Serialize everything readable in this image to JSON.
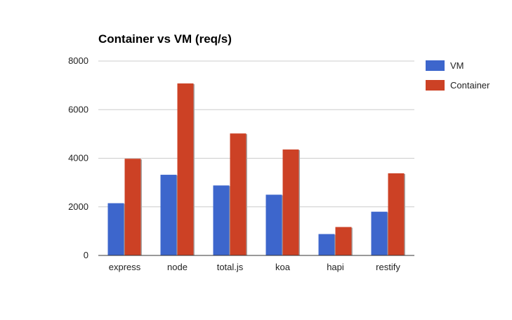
{
  "chart_data": {
    "type": "bar",
    "title": "Container vs VM (req/s)",
    "xlabel": "",
    "ylabel": "",
    "categories": [
      "express",
      "node",
      "total.js",
      "koa",
      "hapi",
      "restify"
    ],
    "series": [
      {
        "name": "VM",
        "color": "#3d66cc",
        "values": [
          2150,
          3320,
          2880,
          2500,
          880,
          1800
        ]
      },
      {
        "name": "Container",
        "color": "#cc4125",
        "values": [
          3980,
          7080,
          5020,
          4360,
          1170,
          3380
        ]
      }
    ],
    "ylim": [
      0,
      8000
    ],
    "yticks": [
      0,
      2000,
      4000,
      6000,
      8000
    ],
    "grid": true,
    "legend": "right"
  }
}
